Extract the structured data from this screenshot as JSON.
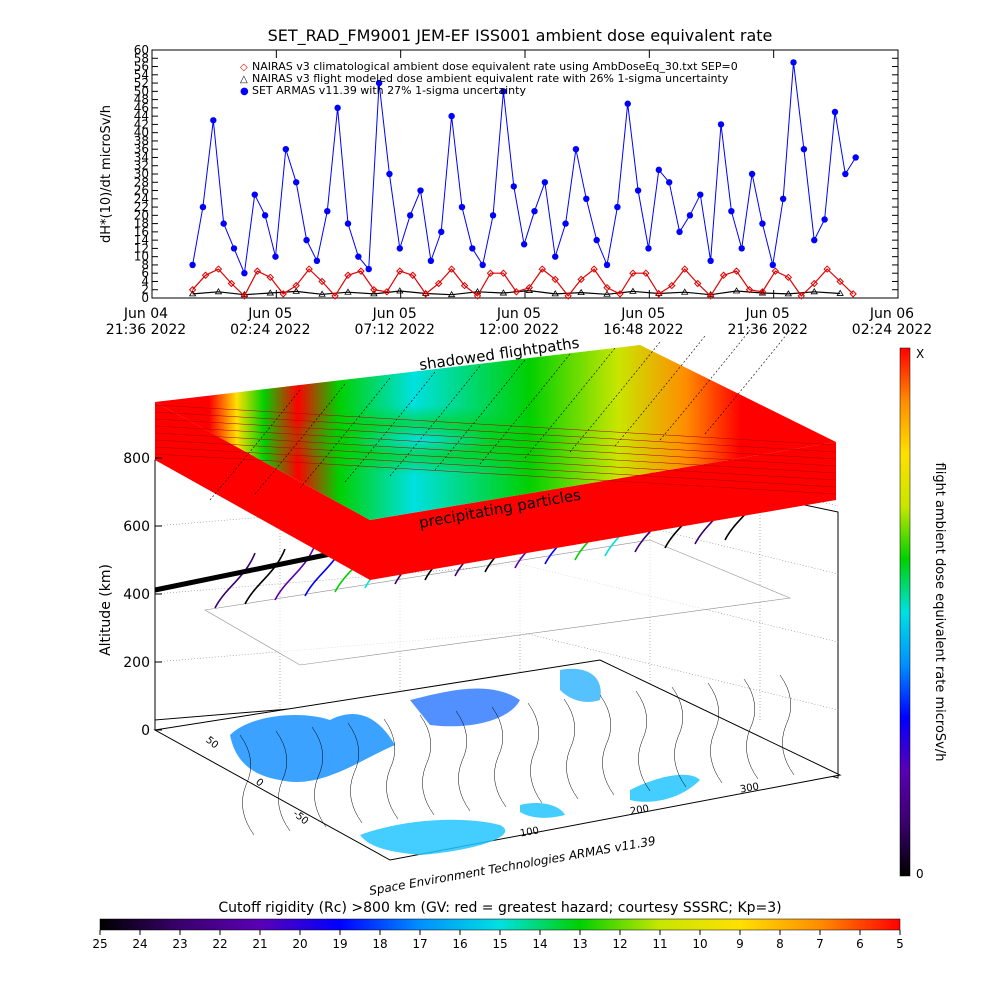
{
  "chart_data": [
    {
      "type": "line",
      "title": "SET_RAD_FM9001  JEM-EF ISS001 ambient dose equivalent rate",
      "ylabel": "dH*(10)/dt microSv/h",
      "ylim": [
        0,
        60
      ],
      "y_ticks": [
        0,
        2,
        4,
        6,
        8,
        10,
        12,
        14,
        16,
        18,
        20,
        22,
        24,
        26,
        28,
        30,
        32,
        34,
        36,
        38,
        40,
        42,
        44,
        46,
        48,
        50,
        52,
        54,
        56,
        58,
        60
      ],
      "x_ticks": [
        {
          "date": "Jun 04",
          "time": "21:36 2022"
        },
        {
          "date": "Jun 05",
          "time": "02:24 2022"
        },
        {
          "date": "Jun 05",
          "time": "07:12 2022"
        },
        {
          "date": "Jun 05",
          "time": "12:00 2022"
        },
        {
          "date": "Jun 05",
          "time": "16:48 2022"
        },
        {
          "date": "Jun 05",
          "time": "21:36 2022"
        },
        {
          "date": "Jun 06",
          "time": "02:24 2022"
        }
      ],
      "xlim": [
        "2022-06-04 21:36",
        "2022-06-06 02:24"
      ],
      "legend_position": "top",
      "series": [
        {
          "name": "NAIRAS v3 climatological ambient dose equivalent rate using AmbDoseEq_30.txt SEP=0",
          "marker": "diamond",
          "color": "#e00000",
          "time_hours": [
            0.0,
            0.5,
            1.0,
            1.5,
            2.0,
            2.5,
            3.0,
            3.5,
            4.0,
            4.5,
            5.0,
            5.5,
            6.0,
            6.5,
            7.0,
            7.5,
            8.0,
            8.5,
            9.0,
            9.5,
            10.0,
            10.5,
            11.0,
            11.5,
            12.0,
            12.5,
            13.0,
            13.5,
            14.0,
            14.5,
            15.0,
            15.5,
            16.0,
            16.5,
            17.0,
            17.5,
            18.0,
            18.5,
            19.0,
            19.5,
            20.0,
            20.5,
            21.0,
            21.5,
            22.0,
            22.5,
            23.0,
            23.5,
            24.0,
            24.5,
            25.0,
            25.5
          ],
          "values": [
            2.0,
            5.5,
            7.0,
            3.5,
            0.5,
            6.5,
            5.0,
            1.0,
            3.0,
            7.0,
            4.0,
            0.5,
            5.5,
            6.5,
            2.0,
            1.5,
            6.5,
            5.5,
            1.0,
            3.5,
            7.0,
            3.0,
            0.5,
            6.0,
            6.0,
            1.5,
            2.5,
            7.0,
            4.5,
            0.5,
            4.5,
            7.0,
            2.5,
            1.0,
            6.0,
            6.0,
            1.0,
            3.0,
            7.0,
            3.5,
            0.5,
            5.5,
            6.5,
            2.0,
            1.5,
            6.5,
            5.0,
            0.5,
            3.5,
            7.0,
            4.0,
            1.0
          ]
        },
        {
          "name": "NAIRAS v3 flight modeled dose ambient equivalent rate with 26% 1-sigma uncertainty",
          "marker": "triangle",
          "color": "#000000",
          "time_hours": [
            0.0,
            1.0,
            2.0,
            3.0,
            4.0,
            5.0,
            6.0,
            7.0,
            8.0,
            9.0,
            10.0,
            11.0,
            12.0,
            13.0,
            14.0,
            15.0,
            16.0,
            17.0,
            18.0,
            19.0,
            20.0,
            21.0,
            22.0,
            23.0,
            24.0,
            25.0
          ],
          "values": [
            1.0,
            1.5,
            0.8,
            1.2,
            1.6,
            0.9,
            1.4,
            1.0,
            1.7,
            1.1,
            0.8,
            1.5,
            1.2,
            1.8,
            1.0,
            1.3,
            0.9,
            1.6,
            1.1,
            1.4,
            0.8,
            1.7,
            1.2,
            1.0,
            1.5,
            1.1
          ]
        },
        {
          "name": "SET ARMAS v11.39 with 27% 1-sigma uncertainty",
          "marker": "circle",
          "color": "#0000ff",
          "time_hours": [
            0.0,
            0.4,
            0.8,
            1.2,
            1.6,
            2.0,
            2.4,
            2.8,
            3.2,
            3.6,
            4.0,
            4.4,
            4.8,
            5.2,
            5.6,
            6.0,
            6.4,
            6.8,
            7.2,
            7.6,
            8.0,
            8.4,
            8.8,
            9.2,
            9.6,
            10.0,
            10.4,
            10.8,
            11.2,
            11.6,
            12.0,
            12.4,
            12.8,
            13.2,
            13.6,
            14.0,
            14.4,
            14.8,
            15.2,
            15.6,
            16.0,
            16.4,
            16.8,
            17.2,
            17.6,
            18.0,
            18.4,
            18.8,
            19.2,
            19.6,
            20.0,
            20.4,
            20.8,
            21.2,
            21.6,
            22.0,
            22.4,
            22.8,
            23.2,
            23.6,
            24.0,
            24.4,
            24.8,
            25.2,
            25.6
          ],
          "values": [
            8,
            22,
            43,
            18,
            12,
            6,
            25,
            20,
            10,
            36,
            28,
            14,
            9,
            21,
            46,
            18,
            10,
            7,
            52,
            30,
            12,
            20,
            26,
            9,
            16,
            44,
            22,
            12,
            8,
            20,
            50,
            27,
            13,
            21,
            28,
            10,
            18,
            36,
            24,
            14,
            8,
            22,
            47,
            26,
            12,
            31,
            28,
            16,
            20,
            25,
            9,
            42,
            21,
            12,
            30,
            18,
            8,
            24,
            57,
            36,
            14,
            19,
            45,
            30,
            34
          ]
        }
      ]
    },
    {
      "type": "heatmap",
      "ylabel": "Altitude (km)",
      "z_ticks": [
        0,
        200,
        400,
        600,
        800
      ],
      "y_ticks": [
        -50,
        0,
        50
      ],
      "x_ticks": [
        100,
        200,
        300
      ],
      "annotations": [
        "shadowed flightpaths",
        "precipitating particles"
      ],
      "caption": "Space Environment Technologies ARMAS v11.39",
      "colorbar_right": {
        "label": "flight ambient dose equivalent rate microSv/h",
        "min_label": "0",
        "max_label": "X",
        "colors": [
          "#000000",
          "#3a006e",
          "#5a00b4",
          "#0000ff",
          "#0090ff",
          "#00e0e0",
          "#00d000",
          "#c8e600",
          "#ffe000",
          "#ff8c00",
          "#ff0000"
        ]
      },
      "colorbar_bottom": {
        "title": "Cutoff rigidity (Rc) >800 km (GV: red = greatest hazard; courtesy SSSRC; Kp=3)",
        "ticks": [
          25,
          24,
          23,
          22,
          21,
          20,
          19,
          18,
          17,
          16,
          15,
          14,
          13,
          12,
          11,
          10,
          9,
          8,
          7,
          6,
          5
        ],
        "colors": [
          "#000000",
          "#3a006e",
          "#5a00b4",
          "#0000ff",
          "#0090ff",
          "#00e0e0",
          "#00d000",
          "#c8e600",
          "#ffe000",
          "#ff8c00",
          "#ff0000"
        ]
      }
    }
  ]
}
